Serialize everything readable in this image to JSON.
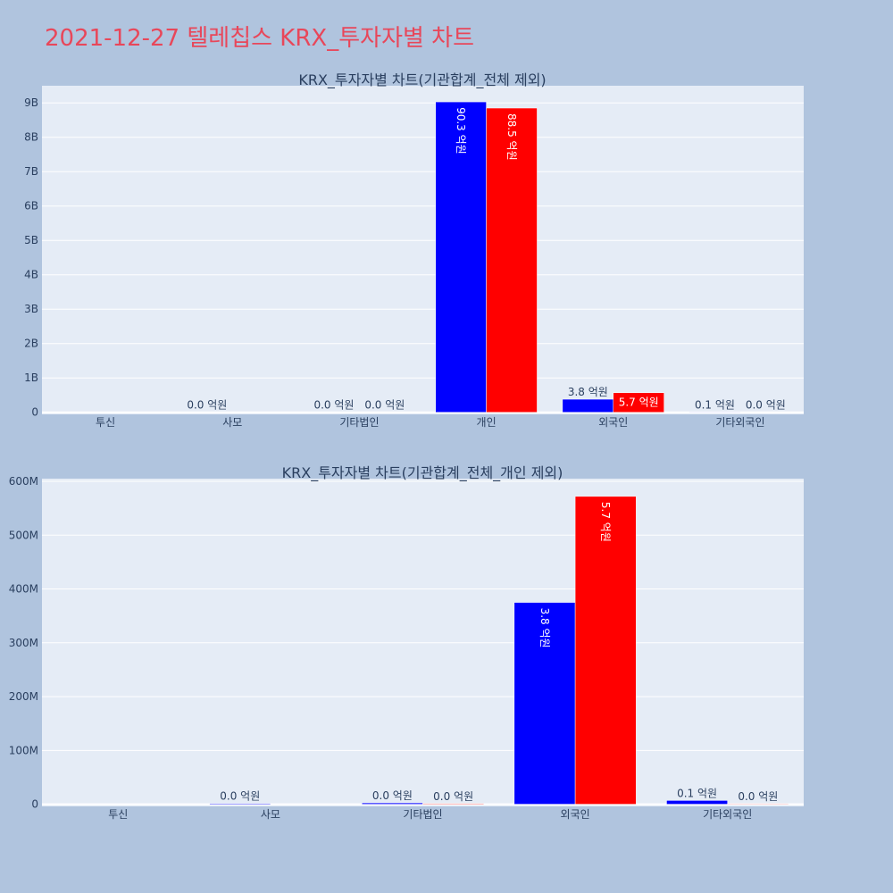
{
  "page": {
    "title": "2021-12-27 텔레칩스 KRX_투자자별 차트",
    "background": "#b0c4de",
    "title_color": "#e8475a"
  },
  "colors": {
    "plot_background": "#e5ecf6",
    "gridline": "#ffffff",
    "series_blue": "#0000ff",
    "series_red": "#ff0000",
    "text": "#2a3f5f"
  },
  "chart_data": [
    {
      "type": "bar",
      "title": "KRX_투자자별 차트(기관합계_전체 제외)",
      "categories": [
        "투신",
        "사모",
        "기타법인",
        "개인",
        "외국인",
        "기타외국인"
      ],
      "series": [
        {
          "color": "#0000ff",
          "values": [
            0,
            1500000,
            1600000,
            9030000000,
            380000000,
            8000000
          ],
          "labels": [
            "",
            "0.0 억원",
            "0.0 억원",
            "90.3 억원",
            "3.8 억원",
            "0.1 억원"
          ]
        },
        {
          "color": "#ff0000",
          "values": [
            0,
            0,
            1200000,
            8850000000,
            570000000,
            1000000
          ],
          "labels": [
            "",
            "",
            "0.0 억원",
            "88.5 억원",
            "5.7 억원",
            "0.0 억원"
          ]
        }
      ],
      "yticks": [
        0,
        1000000000,
        2000000000,
        3000000000,
        4000000000,
        5000000000,
        6000000000,
        7000000000,
        8000000000,
        9000000000
      ],
      "ytick_labels": [
        "0",
        "1B",
        "2B",
        "3B",
        "4B",
        "5B",
        "6B",
        "7B",
        "8B",
        "9B"
      ],
      "ylim": [
        -60000000,
        9500000000
      ],
      "grid": true
    },
    {
      "type": "bar",
      "title": "KRX_투자자별 차트(기관합계_전체_개인 제외)",
      "categories": [
        "투신",
        "사모",
        "기타법인",
        "외국인",
        "기타외국인"
      ],
      "series": [
        {
          "color": "#0000ff",
          "values": [
            0,
            1500000,
            2500000,
            375000000,
            7000000
          ],
          "labels": [
            "",
            "0.0 억원",
            "0.0 억원",
            "3.8 억원",
            "0.1 억원"
          ]
        },
        {
          "color": "#ff0000",
          "values": [
            0,
            0,
            1200000,
            572000000,
            1000000
          ],
          "labels": [
            "",
            "",
            "0.0 억원",
            "5.7 억원",
            "0.0 억원"
          ]
        }
      ],
      "yticks": [
        0,
        100000000,
        200000000,
        300000000,
        400000000,
        500000000,
        600000000
      ],
      "ytick_labels": [
        "0",
        "100M",
        "200M",
        "300M",
        "400M",
        "500M",
        "600M"
      ],
      "ylim": [
        -4000000,
        605000000
      ],
      "grid": true
    }
  ]
}
